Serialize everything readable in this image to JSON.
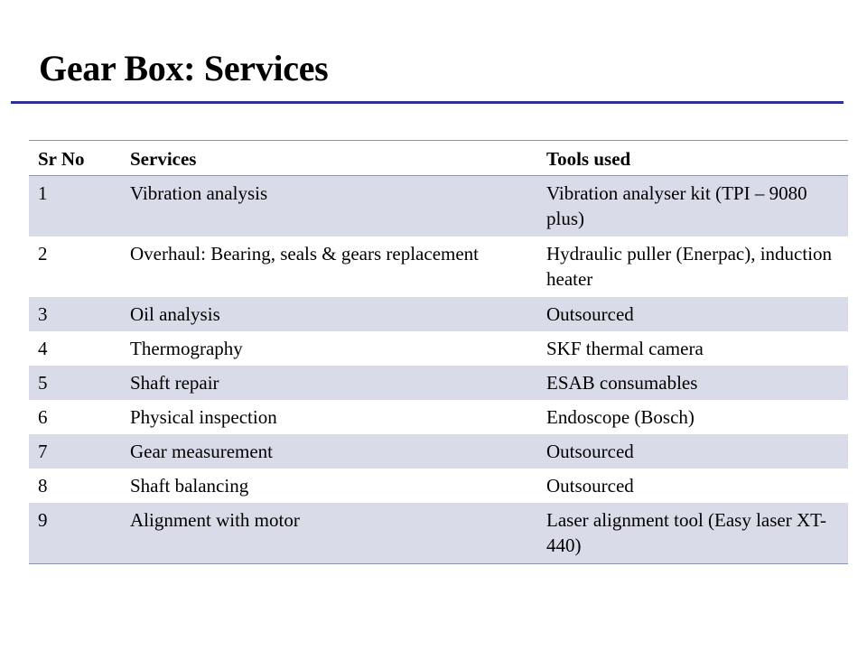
{
  "slide": {
    "title": "Gear Box: Services"
  },
  "table": {
    "headers": [
      "Sr No",
      "Services",
      "Tools used"
    ],
    "rows": [
      [
        "1",
        "Vibration analysis",
        "Vibration analyser kit (TPI – 9080 plus)"
      ],
      [
        "2",
        "Overhaul: Bearing, seals & gears replacement",
        "Hydraulic puller (Enerpac), induction heater"
      ],
      [
        "3",
        "Oil analysis",
        "Outsourced"
      ],
      [
        "4",
        "Thermography",
        "SKF thermal camera"
      ],
      [
        "5",
        "Shaft repair",
        "ESAB consumables"
      ],
      [
        "6",
        "Physical inspection",
        "Endoscope (Bosch)"
      ],
      [
        "7",
        "Gear measurement",
        "Outsourced"
      ],
      [
        "8",
        "Shaft balancing",
        "Outsourced"
      ],
      [
        "9",
        "Alignment with motor",
        "Laser alignment tool (Easy laser XT-440)"
      ]
    ]
  },
  "colors": {
    "title_rule": "#2e3192",
    "band_fill": "#d9dce8",
    "table_rule": "#8a93b2"
  }
}
